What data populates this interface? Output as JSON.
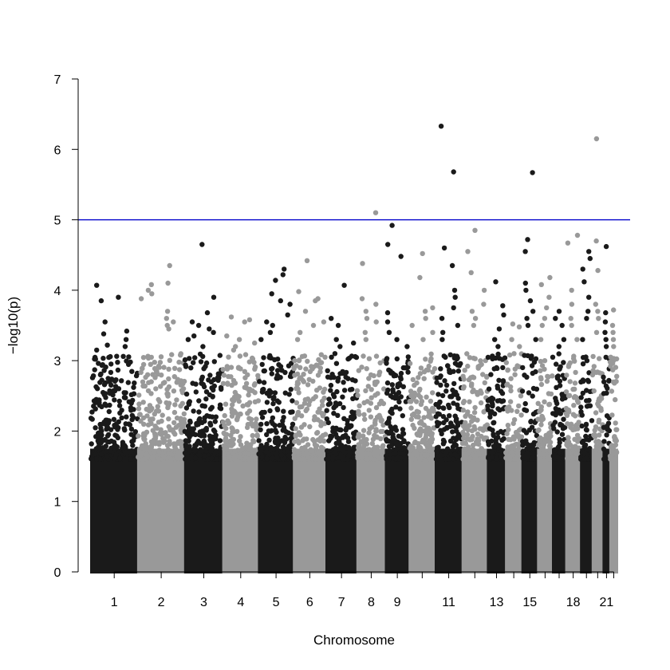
{
  "chart_data": {
    "type": "scatter",
    "title": "",
    "xlabel": "Chromosome",
    "ylabel": "−log10(p)",
    "ylim": [
      0,
      7
    ],
    "y_ticks": [
      0,
      1,
      2,
      3,
      4,
      5,
      6,
      7
    ],
    "x_tick_labels_shown": [
      "1",
      "2",
      "3",
      "4",
      "5",
      "6",
      "7",
      "8",
      "9",
      "11",
      "13",
      "15",
      "18",
      "21"
    ],
    "significance_line": {
      "y": 5,
      "color": "#0000cc"
    },
    "colors": [
      "#1a1a1a",
      "#999999"
    ],
    "grid": false,
    "legend": "none",
    "chromosomes": [
      {
        "chr": 1,
        "top_points": [
          4.07,
          3.9,
          3.85,
          3.55,
          3.42,
          3.38,
          3.3,
          3.22,
          3.2,
          3.15
        ]
      },
      {
        "chr": 2,
        "top_points": [
          4.35,
          4.1,
          4.08,
          4.0,
          3.95,
          3.88,
          3.7,
          3.6,
          3.55,
          3.5,
          3.45
        ]
      },
      {
        "chr": 3,
        "top_points": [
          4.65,
          3.9,
          3.68,
          3.55,
          3.5,
          3.45,
          3.4,
          3.35,
          3.3,
          3.2
        ]
      },
      {
        "chr": 4,
        "top_points": [
          3.62,
          3.58,
          3.55,
          3.35,
          3.3,
          3.25,
          3.2,
          3.15
        ]
      },
      {
        "chr": 5,
        "top_points": [
          4.3,
          4.22,
          4.14,
          3.95,
          3.85,
          3.8,
          3.65,
          3.55,
          3.5,
          3.4,
          3.3
        ]
      },
      {
        "chr": 6,
        "top_points": [
          4.42,
          3.98,
          3.88,
          3.85,
          3.7,
          3.55,
          3.5,
          3.4,
          3.3
        ]
      },
      {
        "chr": 7,
        "top_points": [
          4.07,
          3.6,
          3.5,
          3.3,
          3.25,
          3.2,
          3.1
        ]
      },
      {
        "chr": 8,
        "top_points": [
          5.1,
          4.38,
          3.88,
          3.8,
          3.7,
          3.6,
          3.55,
          3.4,
          3.3
        ]
      },
      {
        "chr": 9,
        "top_points": [
          4.92,
          4.65,
          4.48,
          3.68,
          3.55,
          3.4,
          3.3,
          3.2
        ]
      },
      {
        "chr": 10,
        "top_points": [
          4.52,
          4.18,
          3.75,
          3.7,
          3.6,
          3.5,
          3.4,
          3.3
        ]
      },
      {
        "chr": 11,
        "top_points": [
          6.33,
          5.68,
          4.6,
          4.35,
          4.0,
          3.9,
          3.75,
          3.6,
          3.5,
          3.4,
          3.3
        ]
      },
      {
        "chr": 12,
        "top_points": [
          4.85,
          4.55,
          4.25,
          4.0,
          3.8,
          3.7,
          3.6,
          3.5
        ]
      },
      {
        "chr": 13,
        "top_points": [
          4.12,
          3.78,
          3.65,
          3.45,
          3.3,
          3.2
        ]
      },
      {
        "chr": 14,
        "top_points": [
          3.52,
          3.48,
          3.3,
          3.2,
          3.1
        ]
      },
      {
        "chr": 15,
        "top_points": [
          5.67,
          4.72,
          4.55,
          4.1,
          4.0,
          3.85,
          3.7,
          3.6,
          3.5,
          3.3
        ]
      },
      {
        "chr": 16,
        "top_points": [
          4.18,
          4.08,
          3.9,
          3.75,
          3.6,
          3.5,
          3.3
        ]
      },
      {
        "chr": 17,
        "top_points": [
          3.7,
          3.6,
          3.5,
          3.3,
          3.2
        ]
      },
      {
        "chr": 18,
        "top_points": [
          4.78,
          4.67,
          4.0,
          3.8,
          3.6,
          3.5,
          3.3
        ]
      },
      {
        "chr": 19,
        "top_points": [
          4.55,
          4.45,
          4.3,
          4.12,
          3.9,
          3.7,
          3.6,
          3.3
        ]
      },
      {
        "chr": 20,
        "top_points": [
          6.15,
          4.7,
          4.28,
          3.8,
          3.7,
          3.6,
          3.4
        ]
      },
      {
        "chr": 21,
        "top_points": [
          4.62,
          3.68,
          3.55,
          3.4,
          3.3,
          3.2
        ]
      },
      {
        "chr": 22,
        "top_points": [
          3.72,
          3.5,
          3.4,
          3.3,
          3.2
        ]
      }
    ]
  }
}
